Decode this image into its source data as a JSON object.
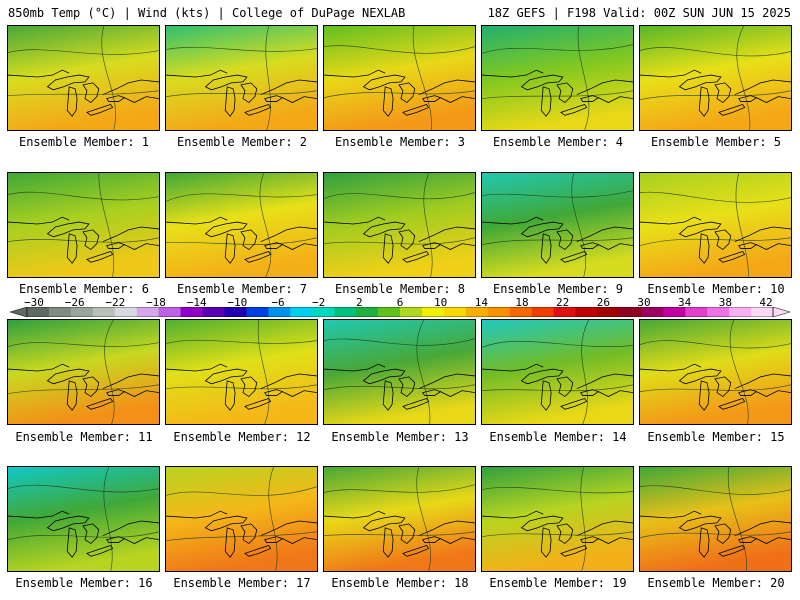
{
  "header": {
    "left": "850mb Temp (°C) | Wind (kts) | College of DuPage NEXLAB",
    "right": "18Z GEFS | F198 Valid: 00Z SUN JUN 15 2025"
  },
  "colorbar": {
    "tick_labels": [
      "−30",
      "−26",
      "−22",
      "−18",
      "−14",
      "−10",
      "−6",
      "−2",
      "2",
      "6",
      "10",
      "14",
      "18",
      "22",
      "26",
      "30",
      "34",
      "38",
      "42"
    ],
    "colors": [
      "#5f6a62",
      "#7f8b83",
      "#9aa59d",
      "#b7c1b9",
      "#d9d9e6",
      "#d6a7ea",
      "#c060e6",
      "#9000c8",
      "#5a00b4",
      "#2000b0",
      "#0040e0",
      "#0090f0",
      "#00d0f0",
      "#00d8c0",
      "#00c080",
      "#20b040",
      "#60c020",
      "#b0d820",
      "#f0f000",
      "#f8d800",
      "#f8b000",
      "#f89000",
      "#f86800",
      "#f04000",
      "#e01010",
      "#c00000",
      "#a00000",
      "#900020",
      "#a00060",
      "#c000a0",
      "#e040d0",
      "#f070e8",
      "#f8b0f0",
      "#fcd8f8"
    ]
  },
  "panels": [
    {
      "label": "Ensemble Member: 1",
      "north": "#48a838",
      "mid": "#d8dc20",
      "south": "#f4a818"
    },
    {
      "label": "Ensemble Member: 2",
      "north": "#30c070",
      "mid": "#d8dc20",
      "south": "#f4a818"
    },
    {
      "label": "Ensemble Member: 3",
      "north": "#60c020",
      "mid": "#e8d818",
      "south": "#f49818"
    },
    {
      "label": "Ensemble Member: 4",
      "north": "#20b070",
      "mid": "#80c820",
      "south": "#e8d818"
    },
    {
      "label": "Ensemble Member: 5",
      "north": "#58b828",
      "mid": "#e8e018",
      "south": "#f4a818"
    },
    {
      "label": "Ensemble Member: 6",
      "north": "#40a838",
      "mid": "#a8d020",
      "south": "#f0c818"
    },
    {
      "label": "Ensemble Member: 7",
      "north": "#40a838",
      "mid": "#e8e018",
      "south": "#f4b018"
    },
    {
      "label": "Ensemble Member: 8",
      "north": "#30a040",
      "mid": "#a0cc20",
      "south": "#f0d018"
    },
    {
      "label": "Ensemble Member: 9",
      "north": "#20c8b0",
      "mid": "#40a838",
      "south": "#d8dc20"
    },
    {
      "label": "Ensemble Member: 10",
      "north": "#a8d020",
      "mid": "#e8e018",
      "south": "#f4a818"
    },
    {
      "label": "Ensemble Member: 11",
      "north": "#30a040",
      "mid": "#c8d820",
      "south": "#f49018"
    },
    {
      "label": "Ensemble Member: 12",
      "north": "#50b030",
      "mid": "#e0e018",
      "south": "#f4b818"
    },
    {
      "label": "Ensemble Member: 13",
      "north": "#20c8b0",
      "mid": "#48a838",
      "south": "#e8d818"
    },
    {
      "label": "Ensemble Member: 14",
      "north": "#20c8c0",
      "mid": "#70bc28",
      "south": "#e8d818"
    },
    {
      "label": "Ensemble Member: 15",
      "north": "#48a838",
      "mid": "#e0dc18",
      "south": "#f49818"
    },
    {
      "label": "Ensemble Member: 16",
      "north": "#10c8c8",
      "mid": "#40a838",
      "south": "#b8d420"
    },
    {
      "label": "Ensemble Member: 17",
      "north": "#b8d420",
      "mid": "#f4b818",
      "south": "#f07818"
    },
    {
      "label": "Ensemble Member: 18",
      "north": "#48a838",
      "mid": "#e8d818",
      "south": "#f07818"
    },
    {
      "label": "Ensemble Member: 19",
      "north": "#30a040",
      "mid": "#b8d420",
      "south": "#f4b018"
    },
    {
      "label": "Ensemble Member: 20",
      "north": "#40a838",
      "mid": "#e8c018",
      "south": "#f07018"
    }
  ]
}
